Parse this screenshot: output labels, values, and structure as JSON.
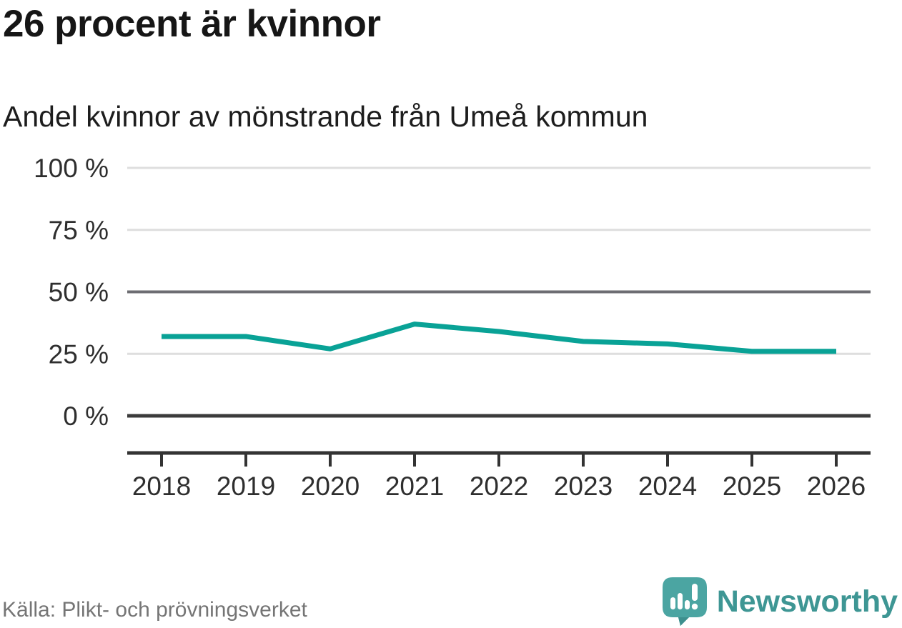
{
  "header": {
    "title": "26 procent är kvinnor",
    "subtitle": "Andel kvinnor av mönstrande från Umeå kommun"
  },
  "chart_data": {
    "type": "line",
    "title": "26 procent är kvinnor",
    "subtitle": "Andel kvinnor av mönstrande från Umeå kommun",
    "categories": [
      "2018",
      "2019",
      "2020",
      "2021",
      "2022",
      "2023",
      "2024",
      "2025",
      "2026"
    ],
    "series": [
      {
        "name": "Andel kvinnor av mönstrande från Umeå kommun",
        "values": [
          32,
          32,
          27,
          37,
          34,
          30,
          29,
          26,
          26
        ]
      }
    ],
    "unit": "%",
    "xlabel": "",
    "ylabel": "",
    "ylim": [
      0,
      100
    ],
    "yticks": [
      0,
      25,
      50,
      75,
      100
    ],
    "ytick_labels": [
      "0 %",
      "25 %",
      "50 %",
      "75 %",
      "100 %"
    ],
    "emphasized_gridlines": [
      50
    ],
    "grid": true,
    "legend": "none",
    "line_color": "#09a296"
  },
  "footer": {
    "source": "Källa: Plikt- och prövningsverket",
    "brand": "Newsworthy"
  },
  "icons": {
    "logo": "newsworthy-speech-bubble-bar-chart-icon"
  },
  "colors": {
    "line": "#09a296",
    "brand_teal": "#3e9694",
    "logo_bubble": "#4ba5a2",
    "logo_bubble_shade": "#3d908e",
    "title_text": "#161616",
    "axis_text": "#2e2e2e",
    "source_text": "#757575",
    "grid_light": "#dedede",
    "grid_mid": "#6d6d72",
    "grid_dark": "#3b3b3b"
  }
}
